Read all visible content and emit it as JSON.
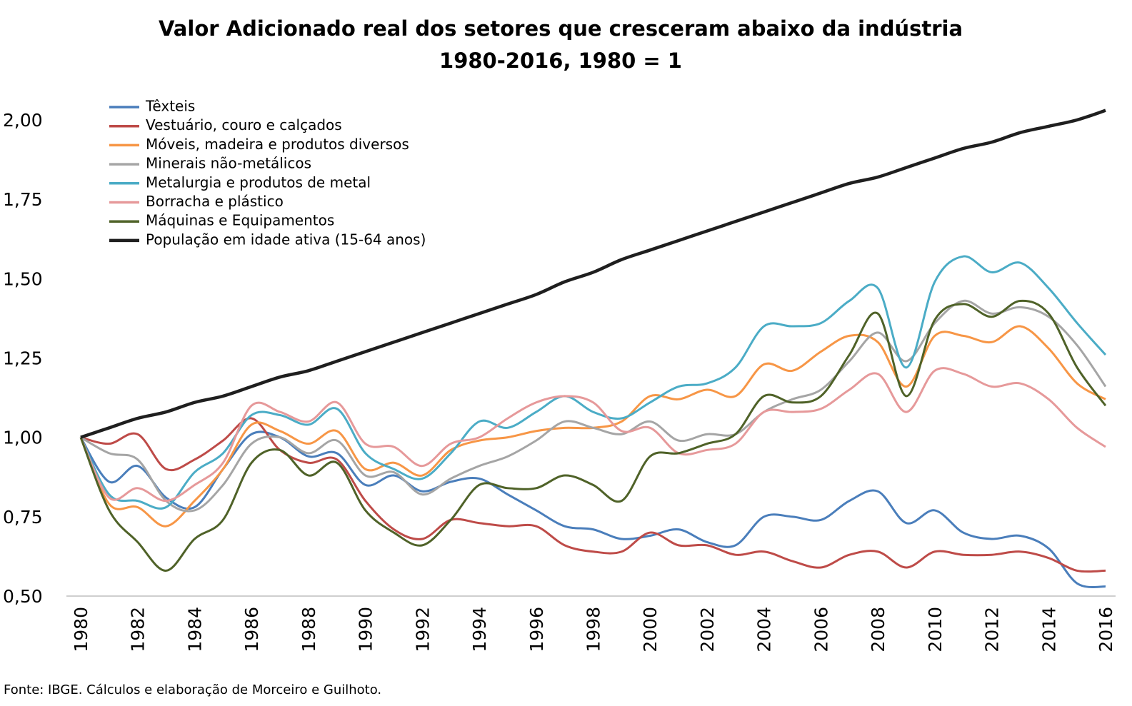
{
  "chart_data": {
    "type": "line",
    "title": "Valor Adicionado real dos setores que cresceram abaixo da indústria",
    "subtitle": "1980-2016, 1980 = 1",
    "source": "Fonte: IBGE. Cálculos e elaboração de Morceiro e Guilhoto.",
    "x": [
      1980,
      1981,
      1982,
      1983,
      1984,
      1985,
      1986,
      1987,
      1988,
      1989,
      1990,
      1991,
      1992,
      1993,
      1994,
      1995,
      1996,
      1997,
      1998,
      1999,
      2000,
      2001,
      2002,
      2003,
      2004,
      2005,
      2006,
      2007,
      2008,
      2009,
      2010,
      2011,
      2012,
      2013,
      2014,
      2015,
      2016
    ],
    "xlim": [
      1980,
      2016
    ],
    "xticks": [
      1980,
      1982,
      1984,
      1986,
      1988,
      1990,
      1992,
      1994,
      1996,
      1998,
      2000,
      2002,
      2004,
      2006,
      2008,
      2010,
      2012,
      2014,
      2016
    ],
    "ylim": [
      0.5,
      2.0
    ],
    "yticks": [
      {
        "value": 0.5,
        "label": "0,50"
      },
      {
        "value": 0.75,
        "label": "0,75"
      },
      {
        "value": 1.0,
        "label": "1,00"
      },
      {
        "value": 1.25,
        "label": "1,25"
      },
      {
        "value": 1.5,
        "label": "1,50"
      },
      {
        "value": 1.75,
        "label": "1,75"
      },
      {
        "value": 2.0,
        "label": "2,00"
      }
    ],
    "grid": false,
    "legend": "top-left",
    "series": [
      {
        "name": "Têxteis",
        "color": "#4a7ebb",
        "values": [
          1.0,
          0.86,
          0.91,
          0.81,
          0.78,
          0.9,
          1.01,
          1.0,
          0.94,
          0.95,
          0.85,
          0.88,
          0.83,
          0.86,
          0.87,
          0.82,
          0.77,
          0.72,
          0.71,
          0.68,
          0.69,
          0.71,
          0.67,
          0.66,
          0.75,
          0.75,
          0.74,
          0.8,
          0.83,
          0.73,
          0.77,
          0.7,
          0.68,
          0.69,
          0.65,
          0.54,
          0.53
        ]
      },
      {
        "name": "Vestuário, couro e calçados",
        "color": "#be4b48",
        "values": [
          1.0,
          0.98,
          1.01,
          0.9,
          0.93,
          0.99,
          1.06,
          0.96,
          0.92,
          0.93,
          0.8,
          0.71,
          0.68,
          0.74,
          0.73,
          0.72,
          0.72,
          0.66,
          0.64,
          0.64,
          0.7,
          0.66,
          0.66,
          0.63,
          0.64,
          0.61,
          0.59,
          0.63,
          0.64,
          0.59,
          0.64,
          0.63,
          0.63,
          0.64,
          0.62,
          0.58,
          0.58
        ]
      },
      {
        "name": "Móveis, madeira e produtos diversos",
        "color": "#f79646",
        "values": [
          1.0,
          0.79,
          0.78,
          0.72,
          0.8,
          0.9,
          1.04,
          1.02,
          0.98,
          1.02,
          0.9,
          0.92,
          0.88,
          0.96,
          0.99,
          1.0,
          1.02,
          1.03,
          1.03,
          1.05,
          1.13,
          1.12,
          1.15,
          1.13,
          1.23,
          1.21,
          1.27,
          1.32,
          1.3,
          1.16,
          1.32,
          1.32,
          1.3,
          1.35,
          1.28,
          1.17,
          1.12
        ]
      },
      {
        "name": "Minerais não-metálicos",
        "color": "#a5a5a5",
        "values": [
          1.0,
          0.95,
          0.93,
          0.8,
          0.77,
          0.85,
          0.98,
          1.0,
          0.95,
          0.99,
          0.88,
          0.89,
          0.82,
          0.87,
          0.91,
          0.94,
          0.99,
          1.05,
          1.03,
          1.01,
          1.05,
          0.99,
          1.01,
          1.01,
          1.08,
          1.12,
          1.15,
          1.24,
          1.33,
          1.24,
          1.36,
          1.43,
          1.39,
          1.41,
          1.38,
          1.29,
          1.16
        ]
      },
      {
        "name": "Metalurgia e produtos de metal",
        "color": "#4bacc6",
        "values": [
          1.0,
          0.82,
          0.8,
          0.78,
          0.89,
          0.95,
          1.07,
          1.07,
          1.04,
          1.09,
          0.95,
          0.9,
          0.87,
          0.95,
          1.05,
          1.03,
          1.08,
          1.13,
          1.08,
          1.06,
          1.11,
          1.16,
          1.17,
          1.22,
          1.35,
          1.35,
          1.36,
          1.43,
          1.47,
          1.22,
          1.49,
          1.57,
          1.52,
          1.55,
          1.47,
          1.36,
          1.26
        ]
      },
      {
        "name": "Borracha e plástico",
        "color": "#e6999a",
        "values": [
          1.0,
          0.81,
          0.84,
          0.8,
          0.85,
          0.92,
          1.1,
          1.08,
          1.05,
          1.11,
          0.98,
          0.97,
          0.91,
          0.98,
          1.0,
          1.06,
          1.11,
          1.13,
          1.11,
          1.02,
          1.03,
          0.95,
          0.96,
          0.98,
          1.08,
          1.08,
          1.09,
          1.15,
          1.2,
          1.08,
          1.21,
          1.2,
          1.16,
          1.17,
          1.12,
          1.03,
          0.97
        ]
      },
      {
        "name": "Máquinas e Equipamentos",
        "color": "#4f6228",
        "values": [
          1.0,
          0.77,
          0.67,
          0.58,
          0.68,
          0.74,
          0.92,
          0.96,
          0.88,
          0.92,
          0.77,
          0.7,
          0.66,
          0.74,
          0.85,
          0.84,
          0.84,
          0.88,
          0.85,
          0.8,
          0.94,
          0.95,
          0.98,
          1.01,
          1.13,
          1.11,
          1.13,
          1.26,
          1.39,
          1.13,
          1.37,
          1.42,
          1.38,
          1.43,
          1.39,
          1.22,
          1.1
        ]
      },
      {
        "name": "População em idade ativa (15-64 anos)",
        "color": "#1f1f1f",
        "width": 4.5,
        "values": [
          1.0,
          1.03,
          1.06,
          1.08,
          1.11,
          1.13,
          1.16,
          1.19,
          1.21,
          1.24,
          1.27,
          1.3,
          1.33,
          1.36,
          1.39,
          1.42,
          1.45,
          1.49,
          1.52,
          1.56,
          1.59,
          1.62,
          1.65,
          1.68,
          1.71,
          1.74,
          1.77,
          1.8,
          1.82,
          1.85,
          1.88,
          1.91,
          1.93,
          1.96,
          1.98,
          2.0,
          2.03
        ]
      }
    ]
  }
}
